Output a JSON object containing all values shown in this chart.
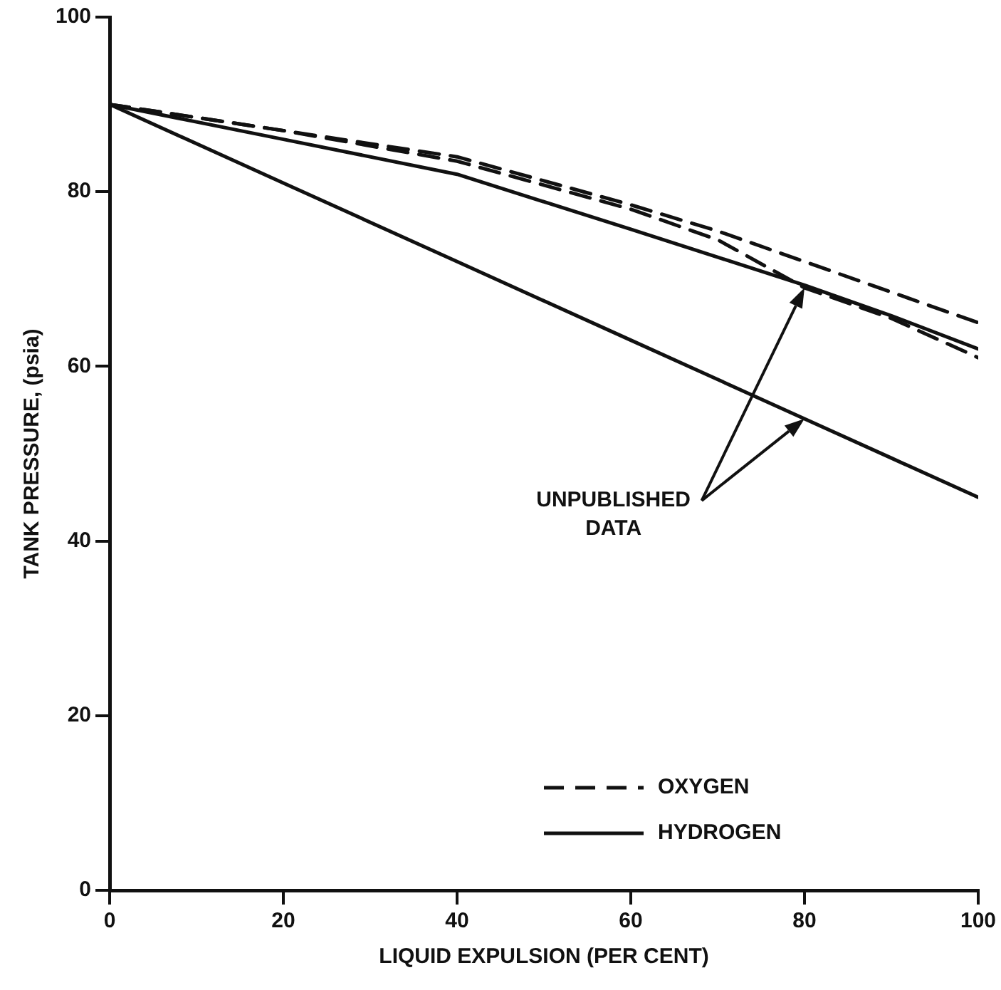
{
  "chart_data": {
    "type": "line",
    "xlabel": "LIQUID EXPULSION (PER CENT)",
    "ylabel": "TANK PRESSURE, (psia)",
    "x": [
      0,
      20,
      40,
      60,
      70,
      80,
      90,
      100
    ],
    "series": [
      {
        "name": "OXYGEN",
        "color": "#111111",
        "line_style": "dashed",
        "values": [
          90,
          87,
          84,
          78.5,
          75.5,
          72,
          68.5,
          65
        ]
      },
      {
        "color": "#111111",
        "line_style": "dashed",
        "values": [
          90,
          87,
          83.5,
          78,
          74.5,
          69,
          65.5,
          61
        ]
      },
      {
        "name": "HYDROGEN",
        "color": "#111111",
        "line_style": "solid",
        "values": [
          90,
          86,
          82,
          75.7,
          72.5,
          69.3,
          65.8,
          62
        ]
      },
      {
        "color": "#111111",
        "line_style": "solid",
        "values": [
          90,
          81,
          72,
          63,
          58.5,
          54,
          49.5,
          45
        ]
      }
    ],
    "xlim": [
      0,
      100
    ],
    "xticks": [
      0,
      20,
      40,
      60,
      80,
      100
    ],
    "ylim": [
      0,
      100
    ],
    "yticks": [
      0,
      20,
      40,
      60,
      80,
      100
    ],
    "annotations": [
      "UNPUBLISHED DATA"
    ],
    "legend": "bottom",
    "marker": "none"
  }
}
